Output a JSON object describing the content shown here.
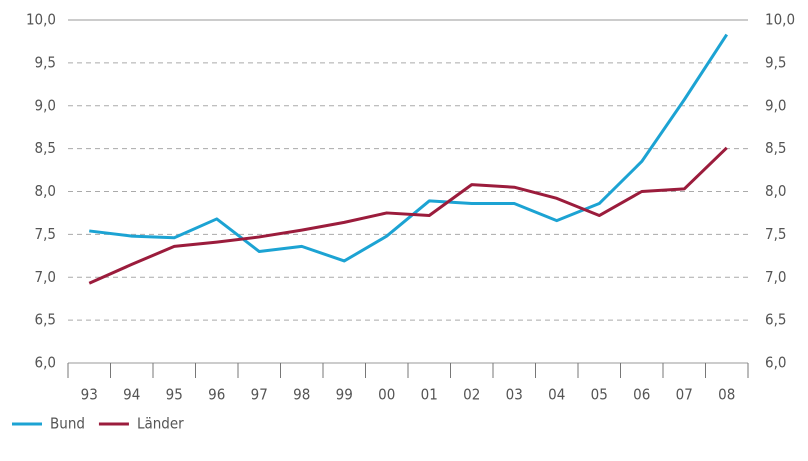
{
  "chart_data": {
    "type": "line",
    "categories": [
      "93",
      "94",
      "95",
      "96",
      "97",
      "98",
      "99",
      "00",
      "01",
      "02",
      "03",
      "04",
      "05",
      "06",
      "07",
      "08"
    ],
    "series": [
      {
        "name": "Bund",
        "color": "#1ca3d3",
        "values": [
          7.54,
          7.48,
          7.46,
          7.68,
          7.3,
          7.36,
          7.19,
          7.48,
          7.89,
          7.86,
          7.86,
          7.66,
          7.86,
          8.35,
          9.07,
          9.83
        ]
      },
      {
        "name": "Länder",
        "color": "#9b1c3c",
        "values": [
          6.93,
          7.15,
          7.36,
          7.41,
          7.47,
          7.55,
          7.64,
          7.75,
          7.72,
          8.08,
          8.05,
          7.92,
          7.72,
          8.0,
          8.03,
          8.51
        ]
      }
    ],
    "ylim": [
      6,
      10
    ],
    "yticks": [
      {
        "value": 6,
        "label": "6,0"
      },
      {
        "value": 6.5,
        "label": "6,5"
      },
      {
        "value": 7,
        "label": "7,0"
      },
      {
        "value": 7.5,
        "label": "7,5"
      },
      {
        "value": 8,
        "label": "8,0"
      },
      {
        "value": 8.5,
        "label": "8,5"
      },
      {
        "value": 9,
        "label": "9,0"
      },
      {
        "value": 9.5,
        "label": "9,5"
      },
      {
        "value": 10,
        "label": "10,0"
      }
    ],
    "y2lim": [
      6,
      10
    ],
    "y2ticks": [
      {
        "value": 6,
        "label": "6,0"
      },
      {
        "value": 6.5,
        "label": "6,5"
      },
      {
        "value": 7,
        "label": "7,0"
      },
      {
        "value": 7.5,
        "label": "7,5"
      },
      {
        "value": 8,
        "label": "8,0"
      },
      {
        "value": 8.5,
        "label": "8,5"
      },
      {
        "value": 9,
        "label": "9,0"
      },
      {
        "value": 9.5,
        "label": "9,5"
      },
      {
        "value": 10,
        "label": "10,0"
      }
    ],
    "grid": true,
    "legend": "bottom-left"
  }
}
